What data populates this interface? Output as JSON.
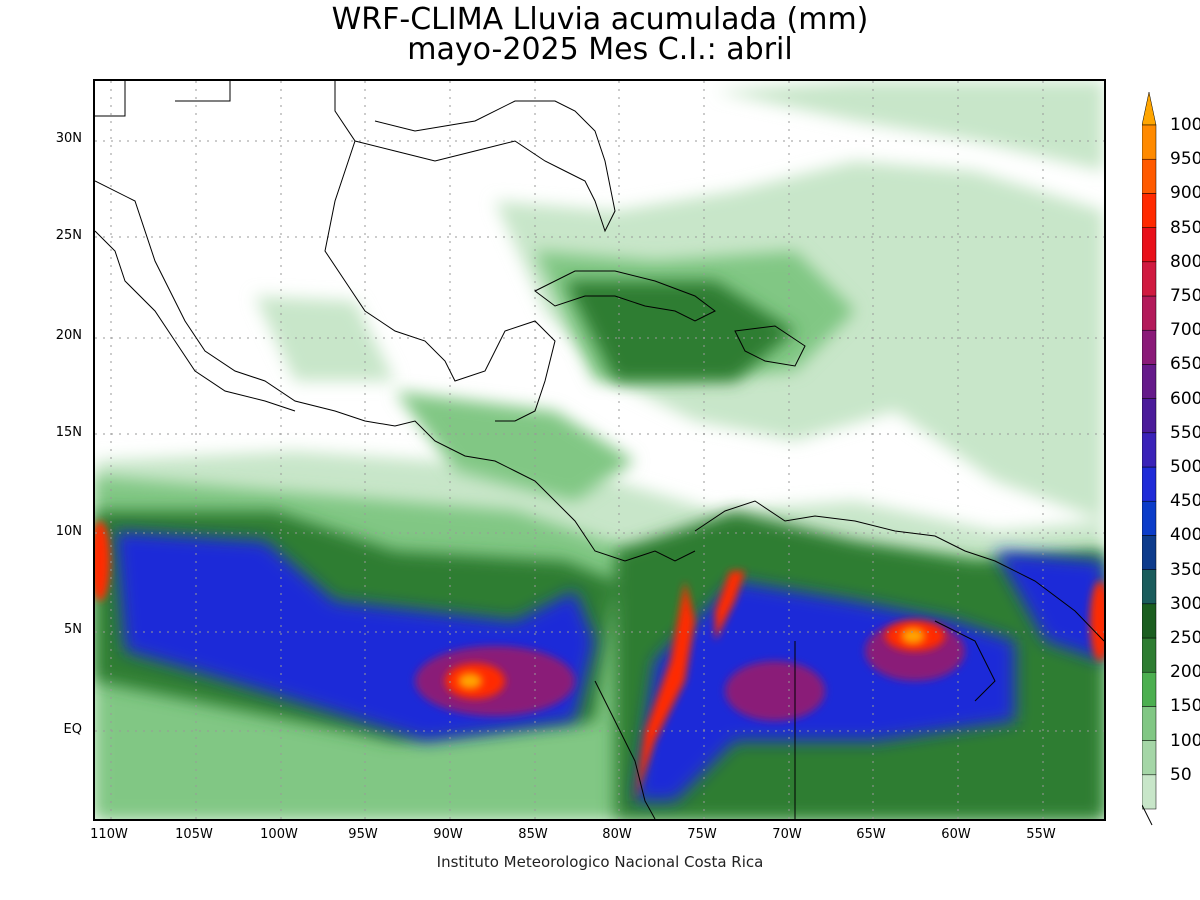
{
  "title": {
    "line1": "WRF-CLIMA Lluvia acumulada (mm)",
    "line2": "mayo-2025 Mes C.I.: abril"
  },
  "footer": "Instituto Meteorologico Nacional Costa Rica",
  "map": {
    "lon_range": [
      -111,
      -51
    ],
    "lat_range": [
      -5.5,
      33
    ],
    "x_ticks": [
      "110W",
      "105W",
      "100W",
      "95W",
      "90W",
      "85W",
      "80W",
      "75W",
      "70W",
      "65W",
      "60W",
      "55W"
    ],
    "y_ticks": [
      "30N",
      "25N",
      "20N",
      "15N",
      "10N",
      "5N",
      "EQ"
    ],
    "grid": "dotted"
  },
  "colorbar": {
    "labels": [
      "50",
      "100",
      "150",
      "200",
      "250",
      "300",
      "350",
      "400",
      "450",
      "500",
      "550",
      "600",
      "650",
      "700",
      "750",
      "800",
      "850",
      "900",
      "950",
      "1000"
    ],
    "colors": [
      "#c8e6c9",
      "#a5d6a7",
      "#81c784",
      "#4caf50",
      "#2e7d32",
      "#1b5e20",
      "#1a5c5c",
      "#0d3b8c",
      "#0b3cc9",
      "#1f2bd8",
      "#3a22b8",
      "#4b1b9a",
      "#651a8a",
      "#8a1a78",
      "#b31a5a",
      "#d01a40",
      "#e8101a",
      "#ff2a00",
      "#ff5a00",
      "#ff8a00",
      "#ffa500"
    ]
  }
}
